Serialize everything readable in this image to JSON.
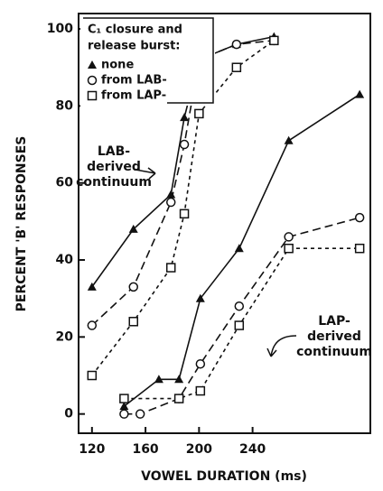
{
  "chart_data": {
    "type": "line",
    "x_label": "VOWEL DURATION (ms)",
    "y_label": "PERCENT 'B' RESPONSES",
    "xlim": [
      110,
      328
    ],
    "ylim": [
      -5,
      104
    ],
    "xticks": [
      120,
      160,
      200,
      240
    ],
    "yticks": [
      0,
      20,
      40,
      60,
      80,
      100
    ],
    "legend_title_lines": [
      "C₁ closure and",
      "release burst:"
    ],
    "legend": [
      {
        "label": "none",
        "marker": "triangle"
      },
      {
        "label": "from LAB-",
        "marker": "circle"
      },
      {
        "label": "from LAP-",
        "marker": "square"
      }
    ],
    "annotations": [
      {
        "lines": [
          "LAB-",
          "derived",
          "continuum"
        ]
      },
      {
        "lines": [
          "LAP-",
          "derived",
          "continuum"
        ]
      }
    ],
    "series": [
      {
        "marker": "triangle",
        "dash": "solid",
        "color": "#111",
        "x": [
          120,
          151,
          179,
          189,
          200,
          228,
          256
        ],
        "values": [
          33,
          48,
          57,
          77,
          92,
          96,
          98
        ]
      },
      {
        "marker": "circle",
        "dash": "long",
        "color": "#111",
        "x": [
          120,
          151,
          179,
          189,
          200,
          228,
          256
        ],
        "values": [
          23,
          33,
          55,
          70,
          92,
          96,
          97
        ]
      },
      {
        "marker": "square",
        "dash": "short",
        "color": "#111",
        "x": [
          120,
          151,
          179,
          189,
          200,
          228,
          256
        ],
        "values": [
          10,
          24,
          38,
          52,
          78,
          90,
          97
        ]
      },
      {
        "marker": "triangle",
        "dash": "solid",
        "color": "#111",
        "x": [
          144,
          170,
          185,
          201,
          230,
          267,
          320
        ],
        "values": [
          2,
          9,
          9,
          30,
          43,
          71,
          83
        ]
      },
      {
        "marker": "circle",
        "dash": "long",
        "color": "#111",
        "x": [
          144,
          156,
          185,
          201,
          230,
          267,
          320
        ],
        "values": [
          0,
          0,
          4,
          13,
          28,
          46,
          51
        ]
      },
      {
        "marker": "square",
        "dash": "short",
        "color": "#111",
        "x": [
          144,
          185,
          201,
          230,
          267,
          320
        ],
        "values": [
          4,
          4,
          6,
          23,
          43,
          43
        ]
      }
    ]
  }
}
